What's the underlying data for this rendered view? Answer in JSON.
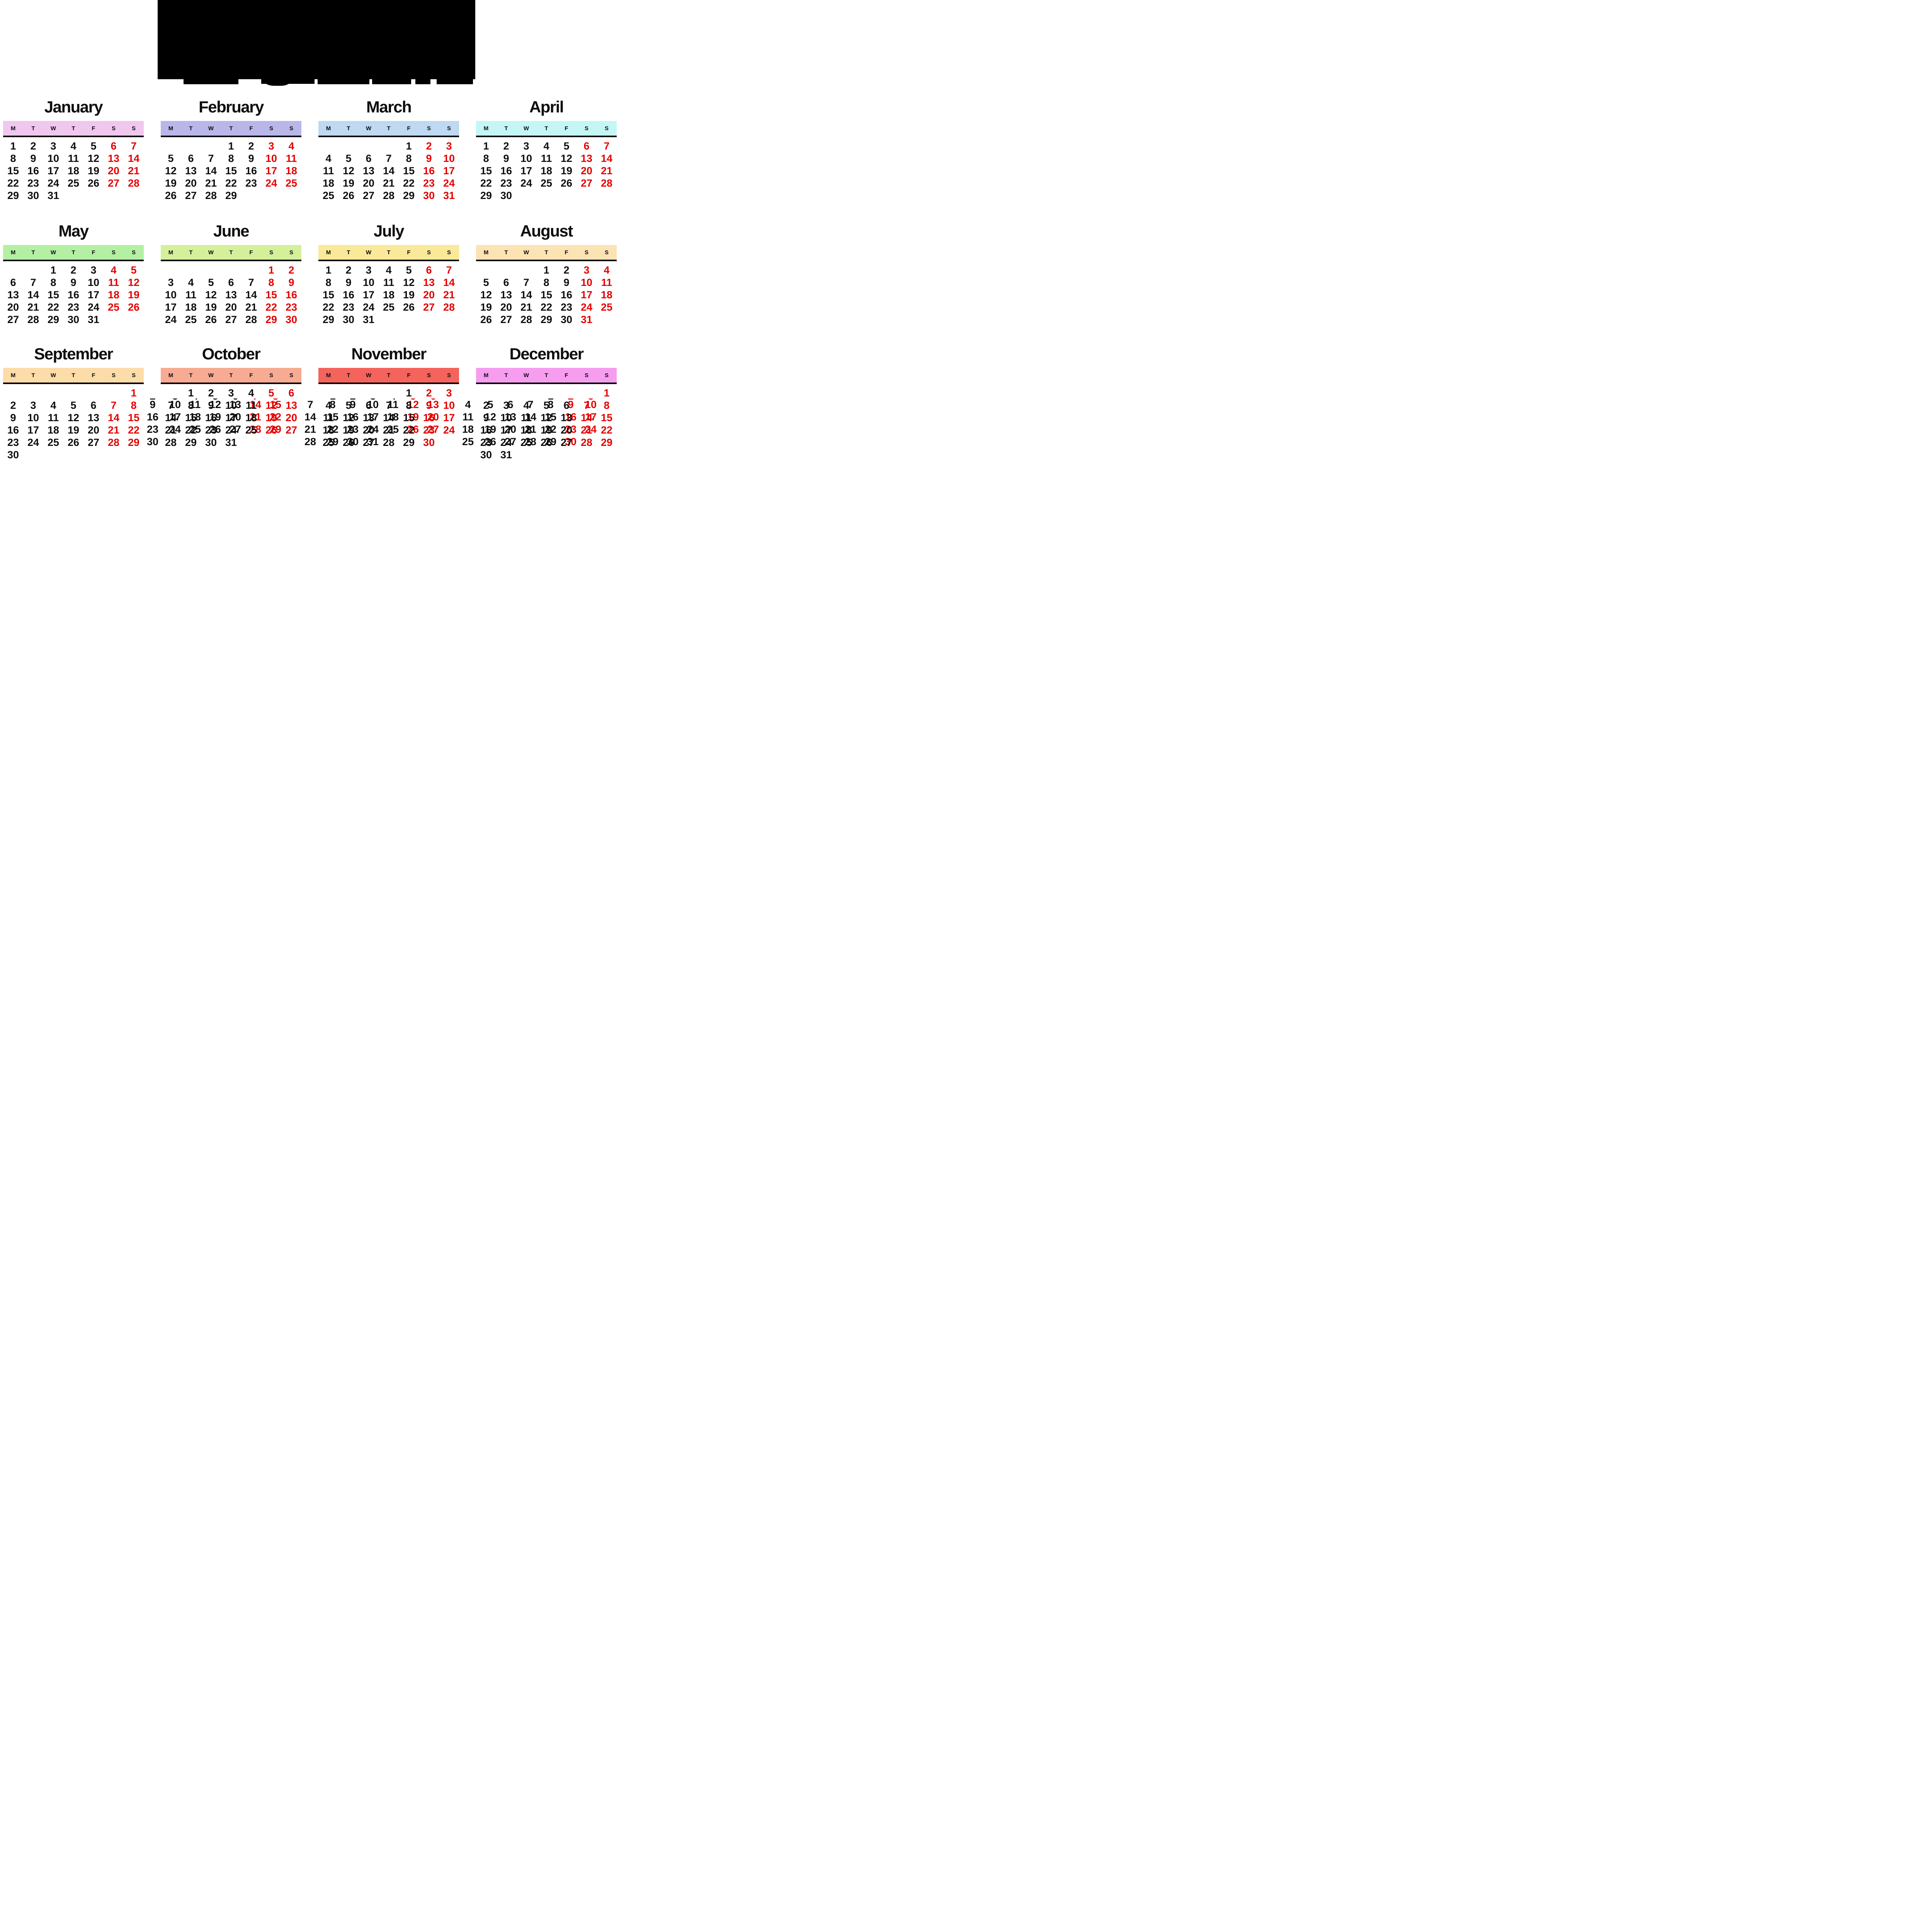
{
  "page": {
    "background": "#ffffff",
    "text_black": "#0e0e0e",
    "accent_red": "#e60000"
  },
  "year_banner": {
    "redacted": true
  },
  "weekdays": [
    "M",
    "T",
    "W",
    "T",
    "F",
    "S",
    "S"
  ],
  "weekend_indices": [
    5,
    6
  ],
  "months": [
    {
      "name": "January",
      "band_color": "#f0c7ee",
      "weeks": [
        [
          "1",
          "2",
          "3",
          "4",
          "5",
          "6",
          "7"
        ],
        [
          "8",
          "9",
          "10",
          "11",
          "12",
          "13",
          "14"
        ],
        [
          "15",
          "16",
          "17",
          "18",
          "19",
          "20",
          "21"
        ],
        [
          "22",
          "23",
          "24",
          "25",
          "26",
          "27",
          "28"
        ],
        [
          "29",
          "30",
          "31",
          "",
          "",
          "",
          ""
        ]
      ]
    },
    {
      "name": "February",
      "band_color": "#b9b7e9",
      "weeks": [
        [
          "",
          "",
          "",
          "1",
          "2",
          "3",
          "4"
        ],
        [
          "5",
          "6",
          "7",
          "8",
          "9",
          "10",
          "11"
        ],
        [
          "12",
          "13",
          "14",
          "15",
          "16",
          "17",
          "18"
        ],
        [
          "19",
          "20",
          "21",
          "22",
          "23",
          "24",
          "25"
        ],
        [
          "26",
          "27",
          "28",
          "29",
          "",
          "",
          ""
        ]
      ]
    },
    {
      "name": "March",
      "band_color": "#bed9f1",
      "weeks": [
        [
          "",
          "",
          "",
          "",
          "1",
          "2",
          "3"
        ],
        [
          "4",
          "5",
          "6",
          "7",
          "8",
          "9",
          "10"
        ],
        [
          "11",
          "12",
          "13",
          "14",
          "15",
          "16",
          "17"
        ],
        [
          "18",
          "19",
          "20",
          "21",
          "22",
          "23",
          "24"
        ],
        [
          "25",
          "26",
          "27",
          "28",
          "29",
          "30",
          "31"
        ]
      ]
    },
    {
      "name": "April",
      "band_color": "#c5f6f6",
      "weeks": [
        [
          "1",
          "2",
          "3",
          "4",
          "5",
          "6",
          "7"
        ],
        [
          "8",
          "9",
          "10",
          "11",
          "12",
          "13",
          "14"
        ],
        [
          "15",
          "16",
          "17",
          "18",
          "19",
          "20",
          "21"
        ],
        [
          "22",
          "23",
          "24",
          "25",
          "26",
          "27",
          "28"
        ],
        [
          "29",
          "30",
          "",
          "",
          "",
          "",
          ""
        ]
      ]
    },
    {
      "name": "May",
      "band_color": "#b4f0a4",
      "weeks": [
        [
          "",
          "",
          "1",
          "2",
          "3",
          "4",
          "5"
        ],
        [
          "6",
          "7",
          "8",
          "9",
          "10",
          "11",
          "12"
        ],
        [
          "13",
          "14",
          "15",
          "16",
          "17",
          "18",
          "19"
        ],
        [
          "20",
          "21",
          "22",
          "23",
          "24",
          "25",
          "26"
        ],
        [
          "27",
          "28",
          "29",
          "30",
          "31",
          "",
          ""
        ]
      ]
    },
    {
      "name": "June",
      "band_color": "#d5f09b",
      "weeks": [
        [
          "",
          "",
          "",
          "",
          "",
          "1",
          "2"
        ],
        [
          "3",
          "4",
          "5",
          "6",
          "7",
          "8",
          "9"
        ],
        [
          "10",
          "11",
          "12",
          "13",
          "14",
          "15",
          "16"
        ],
        [
          "17",
          "18",
          "19",
          "20",
          "21",
          "22",
          "23"
        ],
        [
          "24",
          "25",
          "26",
          "27",
          "28",
          "29",
          "30"
        ]
      ]
    },
    {
      "name": "July",
      "band_color": "#f9e998",
      "weeks": [
        [
          "1",
          "2",
          "3",
          "4",
          "5",
          "6",
          "7"
        ],
        [
          "8",
          "9",
          "10",
          "11",
          "12",
          "13",
          "14"
        ],
        [
          "15",
          "16",
          "17",
          "18",
          "19",
          "20",
          "21"
        ],
        [
          "22",
          "23",
          "24",
          "25",
          "26",
          "27",
          "28"
        ],
        [
          "29",
          "30",
          "31",
          "",
          "",
          "",
          ""
        ]
      ]
    },
    {
      "name": "August",
      "band_color": "#fbe3b4",
      "weeks": [
        [
          "",
          "",
          "",
          "1",
          "2",
          "3",
          "4"
        ],
        [
          "5",
          "6",
          "7",
          "8",
          "9",
          "10",
          "11"
        ],
        [
          "12",
          "13",
          "14",
          "15",
          "16",
          "17",
          "18"
        ],
        [
          "19",
          "20",
          "21",
          "22",
          "23",
          "24",
          "25"
        ],
        [
          "26",
          "27",
          "28",
          "29",
          "30",
          "31",
          ""
        ]
      ]
    },
    {
      "name": "September",
      "band_color": "#fcdca8",
      "weeks": [
        [
          "",
          "",
          "",
          "",
          "",
          "",
          "1"
        ],
        [
          "2",
          "3",
          "4",
          "5",
          "6",
          "7",
          "8"
        ],
        [
          "9",
          "10",
          "11",
          "12",
          "13",
          "14",
          "15"
        ],
        [
          "16",
          "17",
          "18",
          "19",
          "20",
          "21",
          "22"
        ],
        [
          "23",
          "24",
          "25",
          "26",
          "27",
          "28",
          "29"
        ],
        [
          "30",
          "",
          "",
          "",
          "",
          "",
          ""
        ]
      ]
    },
    {
      "name": "October",
      "band_color": "#f8ab93",
      "weeks": [
        [
          "",
          "1",
          "2",
          "3",
          "4",
          "5",
          "6"
        ],
        [
          "7",
          "8",
          "9",
          "10",
          "11",
          "12",
          "13"
        ],
        [
          "14",
          "15",
          "16",
          "17",
          "18",
          "19",
          "20"
        ],
        [
          "21",
          "22",
          "23",
          "24",
          "25",
          "26",
          "27"
        ],
        [
          "28",
          "29",
          "30",
          "31",
          "",
          "",
          ""
        ]
      ],
      "ghost": {
        "leftcol": [
          [
            2,
            "9"
          ],
          [
            3,
            "16"
          ],
          [
            4,
            "23"
          ],
          [
            5,
            "30"
          ]
        ],
        "slivers": [
          [
            -1,
            "2",
            0
          ],
          [
            0,
            "3",
            0
          ],
          [
            1,
            "4",
            0
          ],
          [
            2,
            "5",
            0
          ],
          [
            3,
            "6",
            0
          ],
          [
            4,
            "7",
            1
          ],
          [
            5,
            "8",
            1
          ]
        ],
        "cells": [
          [
            2,
            0,
            "10",
            0
          ],
          [
            2,
            1,
            "11",
            0
          ],
          [
            2,
            2,
            "12",
            0
          ],
          [
            2,
            3,
            "13",
            0
          ],
          [
            2,
            4,
            "14",
            1
          ],
          [
            2,
            5,
            "15",
            1
          ],
          [
            3,
            0,
            "17",
            0
          ],
          [
            3,
            1,
            "18",
            0
          ],
          [
            3,
            2,
            "19",
            0
          ],
          [
            3,
            3,
            "20",
            0
          ],
          [
            3,
            4,
            "21",
            1
          ],
          [
            3,
            5,
            "22",
            1
          ],
          [
            4,
            0,
            "24",
            0
          ],
          [
            4,
            1,
            "25",
            0
          ],
          [
            4,
            2,
            "26",
            0
          ],
          [
            4,
            3,
            "27",
            0
          ],
          [
            4,
            4,
            "28",
            1
          ],
          [
            4,
            5,
            "29",
            1
          ]
        ]
      }
    },
    {
      "name": "November",
      "band_color": "#f4635c",
      "weeks": [
        [
          "",
          "",
          "",
          "",
          "1",
          "2",
          "3"
        ],
        [
          "4",
          "5",
          "6",
          "7",
          "8",
          "9",
          "10"
        ],
        [
          "11",
          "12",
          "13",
          "14",
          "15",
          "16",
          "17"
        ],
        [
          "18",
          "19",
          "20",
          "21",
          "22",
          "23",
          "24"
        ],
        [
          "25",
          "26",
          "27",
          "28",
          "29",
          "30",
          ""
        ]
      ],
      "ghost": {
        "leftcol": [
          [
            2,
            "7"
          ],
          [
            3,
            "14"
          ],
          [
            4,
            "21"
          ],
          [
            5,
            "28"
          ]
        ],
        "slivers": [
          [
            0,
            "1",
            0
          ],
          [
            1,
            "2",
            0
          ],
          [
            2,
            "3",
            0
          ],
          [
            3,
            "4",
            0
          ],
          [
            4,
            "5",
            1
          ],
          [
            5,
            "6",
            1
          ]
        ],
        "cells": [
          [
            2,
            0,
            "8",
            0
          ],
          [
            2,
            1,
            "9",
            0
          ],
          [
            2,
            2,
            "10",
            0
          ],
          [
            2,
            3,
            "11",
            0
          ],
          [
            2,
            4,
            "12",
            1
          ],
          [
            2,
            5,
            "13",
            1
          ],
          [
            3,
            0,
            "15",
            0
          ],
          [
            3,
            1,
            "16",
            0
          ],
          [
            3,
            2,
            "17",
            0
          ],
          [
            3,
            3,
            "18",
            0
          ],
          [
            3,
            4,
            "19",
            1
          ],
          [
            3,
            5,
            "20",
            1
          ],
          [
            4,
            0,
            "22",
            0
          ],
          [
            4,
            1,
            "23",
            0
          ],
          [
            4,
            2,
            "24",
            0
          ],
          [
            4,
            3,
            "25",
            0
          ],
          [
            4,
            4,
            "26",
            1
          ],
          [
            4,
            5,
            "27",
            1
          ],
          [
            5,
            0,
            "29",
            0
          ],
          [
            5,
            1,
            "30",
            0
          ],
          [
            5,
            2,
            "31",
            0
          ]
        ]
      }
    },
    {
      "name": "December",
      "band_color": "#f79df0",
      "weeks": [
        [
          "",
          "",
          "",
          "",
          "",
          "",
          "1"
        ],
        [
          "2",
          "3",
          "4",
          "5",
          "6",
          "7",
          "8"
        ],
        [
          "9",
          "10",
          "11",
          "12",
          "13",
          "14",
          "15"
        ],
        [
          "16",
          "17",
          "18",
          "19",
          "20",
          "21",
          "22"
        ],
        [
          "23",
          "24",
          "25",
          "26",
          "27",
          "28",
          "29"
        ],
        [
          "30",
          "31",
          "",
          "",
          "",
          "",
          ""
        ]
      ],
      "ghost": {
        "leftcol": [
          [
            2,
            "4"
          ],
          [
            3,
            "11"
          ],
          [
            4,
            "18"
          ],
          [
            5,
            "25"
          ]
        ],
        "slivers": [
          [
            3,
            "1",
            0
          ],
          [
            4,
            "2",
            1
          ],
          [
            5,
            "3",
            1
          ]
        ],
        "cells": [
          [
            2,
            0,
            "5",
            0
          ],
          [
            2,
            1,
            "6",
            0
          ],
          [
            2,
            2,
            "7",
            0
          ],
          [
            2,
            3,
            "8",
            0
          ],
          [
            2,
            4,
            "9",
            1
          ],
          [
            2,
            5,
            "10",
            1
          ],
          [
            3,
            0,
            "12",
            0
          ],
          [
            3,
            1,
            "13",
            0
          ],
          [
            3,
            2,
            "14",
            0
          ],
          [
            3,
            3,
            "15",
            0
          ],
          [
            3,
            4,
            "16",
            1
          ],
          [
            3,
            5,
            "17",
            1
          ],
          [
            4,
            0,
            "19",
            0
          ],
          [
            4,
            1,
            "20",
            0
          ],
          [
            4,
            2,
            "21",
            0
          ],
          [
            4,
            3,
            "22",
            0
          ],
          [
            4,
            4,
            "23",
            1
          ],
          [
            4,
            5,
            "24",
            1
          ],
          [
            5,
            0,
            "26",
            0
          ],
          [
            5,
            1,
            "27",
            0
          ],
          [
            5,
            2,
            "28",
            0
          ],
          [
            5,
            3,
            "29",
            0
          ],
          [
            5,
            4,
            "30",
            1
          ]
        ]
      }
    }
  ]
}
